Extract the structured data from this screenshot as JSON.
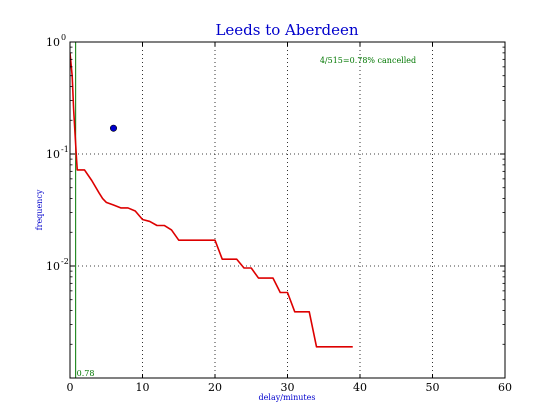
{
  "chart_data": {
    "type": "line",
    "title": "Leeds to Aberdeen",
    "xlabel": "delay/minutes",
    "ylabel": "frequency",
    "xlim": [
      0,
      60
    ],
    "ylim": [
      0.001,
      1
    ],
    "yscale": "log",
    "grid": true,
    "x_ticks": [
      "0",
      "10",
      "20",
      "30",
      "40",
      "50",
      "60"
    ],
    "y_ticks": [
      {
        "base": "10",
        "exp": "0"
      },
      {
        "base": "10",
        "exp": "-1"
      },
      {
        "base": "10",
        "exp": "-2"
      }
    ],
    "series": [
      {
        "color": "#dd0000",
        "x": [
          0,
          0.3,
          0.5,
          0.7,
          0.9,
          1.0,
          2.0,
          3.0,
          4.0,
          4.5,
          5.0,
          6.0,
          7.0,
          8.0,
          9.0,
          10.0,
          11.0,
          12.0,
          13.0,
          14.0,
          15.0,
          16.0,
          17.0,
          18.0,
          19.0,
          20.0,
          21.0,
          22.0,
          23.0,
          24.0,
          25.0,
          26.0,
          27.0,
          28.0,
          29.0,
          30.0,
          31.0,
          32.0,
          33.0,
          34.0,
          35.0,
          36.0,
          37.0,
          38.0,
          39.0
        ],
        "y": [
          0.8,
          0.5,
          0.25,
          0.15,
          0.09,
          0.072,
          0.072,
          0.058,
          0.045,
          0.04,
          0.037,
          0.035,
          0.033,
          0.033,
          0.031,
          0.026,
          0.025,
          0.023,
          0.023,
          0.021,
          0.017,
          0.017,
          0.017,
          0.017,
          0.017,
          0.017,
          0.0115,
          0.0115,
          0.0115,
          0.0096,
          0.0096,
          0.0078,
          0.0078,
          0.0078,
          0.0058,
          0.0058,
          0.0039,
          0.0039,
          0.0039,
          0.0019,
          0.0019,
          0.0019,
          0.0019,
          0.0019,
          0.0019
        ]
      }
    ],
    "vertical_line": {
      "x": 0.78,
      "label": "0.78",
      "color": "#007700"
    },
    "point": {
      "x": 6,
      "y": 0.17,
      "color": "#0000cc"
    },
    "annotation": "4/515=0.78% cancelled",
    "colors": {
      "title": "#0000cc",
      "axis_labels": "#0000cc",
      "annotation": "#007700"
    }
  }
}
